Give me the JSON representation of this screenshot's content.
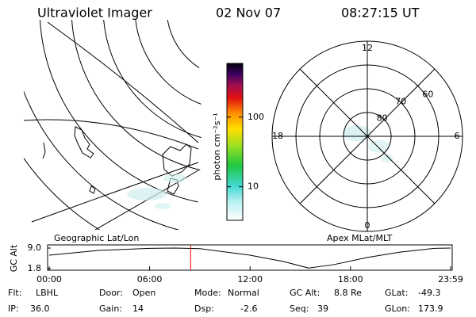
{
  "header": {
    "title": "Ultraviolet Imager",
    "date": "02 Nov 07",
    "time": "08:27:15 UT"
  },
  "left_map": {
    "label": "Geographic Lat/Lon"
  },
  "colorbar": {
    "label": "photon cm⁻²s⁻¹",
    "log": true,
    "lim": [
      3.3,
      590
    ],
    "ticks": [
      10,
      100
    ]
  },
  "polar": {
    "label": "Apex  MLat/MLT",
    "rlim": [
      90,
      50
    ],
    "rticks": [
      80,
      70,
      60
    ],
    "mlt_ticks": [
      12,
      18,
      6,
      0
    ]
  },
  "altitude": {
    "ylabel": "GC Alt",
    "ylim": [
      1.8,
      9.0
    ],
    "yticks": [
      {
        "value": 9.0,
        "label": "9.0"
      },
      1.8
    ],
    "xlim": [
      0,
      23.983
    ],
    "xticks": [
      {
        "value": 0,
        "label": "00:00"
      },
      {
        "value": 6,
        "label": "06:00"
      },
      {
        "value": 12,
        "label": "12:00"
      },
      {
        "value": 18,
        "label": "18:00"
      },
      {
        "value": 23.983,
        "label": "23:59"
      }
    ],
    "x": [
      0,
      3,
      6,
      7.5,
      9,
      12,
      14,
      15.5,
      17,
      19,
      21,
      23,
      23.983
    ],
    "values": [
      6.5,
      8.2,
      8.9,
      9.0,
      8.8,
      6.5,
      4.3,
      2.0,
      3.2,
      5.7,
      7.6,
      8.9,
      9.0
    ],
    "color": "#000000",
    "marker": 8.45,
    "marker_color": "#ff0000"
  },
  "footer": [
    [
      {
        "label": "Flt:",
        "value": "LBHL"
      },
      {
        "label": "Door:",
        "value": "Open"
      },
      {
        "label": "Mode:",
        "value": "Normal"
      },
      {
        "label": "GC Alt:",
        "value": "8.8 Re"
      },
      {
        "label": "GLat:",
        "value": "-49.3"
      }
    ],
    [
      {
        "label": "IP:",
        "value": "36.0"
      },
      {
        "label": "Gain:",
        "value": "14"
      },
      {
        "label": "Dsp:",
        "value": "-2.6"
      },
      {
        "label": "Seq:",
        "value": "39"
      },
      {
        "label": "GLon:",
        "value": "173.9"
      }
    ]
  ]
}
